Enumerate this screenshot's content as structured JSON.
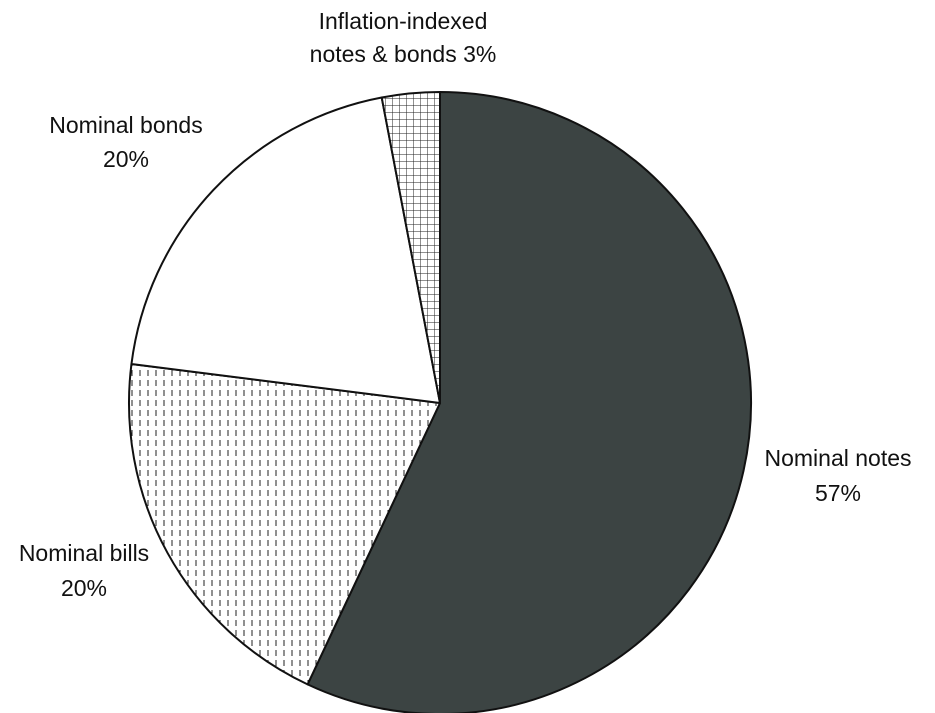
{
  "chart_data": {
    "type": "pie",
    "start_angle_deg": 0,
    "direction": "clockwise",
    "slices": [
      {
        "name": "Nominal notes",
        "value": 57,
        "value_label": "57%",
        "color": "#3c4443",
        "pattern": "solid"
      },
      {
        "name": "Nominal bills",
        "value": 20,
        "value_label": "20%",
        "color": "#ffffff",
        "pattern": "dashed-vertical"
      },
      {
        "name": "Nominal bonds",
        "value": 20,
        "value_label": "20%",
        "color": "#ffffff",
        "pattern": "none"
      },
      {
        "name": "Inflation-indexed notes & bonds",
        "value": 3,
        "value_label": "3%",
        "color": "#ffffff",
        "pattern": "grid"
      }
    ]
  },
  "labels": {
    "notes_line1": "Nominal notes",
    "notes_line2": "57%",
    "bills_line1": "Nominal bills",
    "bills_line2": "20%",
    "bonds_line1": "Nominal bonds",
    "bonds_line2": "20%",
    "tips_line1": "Inflation-indexed",
    "tips_line2": "notes & bonds  3%"
  }
}
